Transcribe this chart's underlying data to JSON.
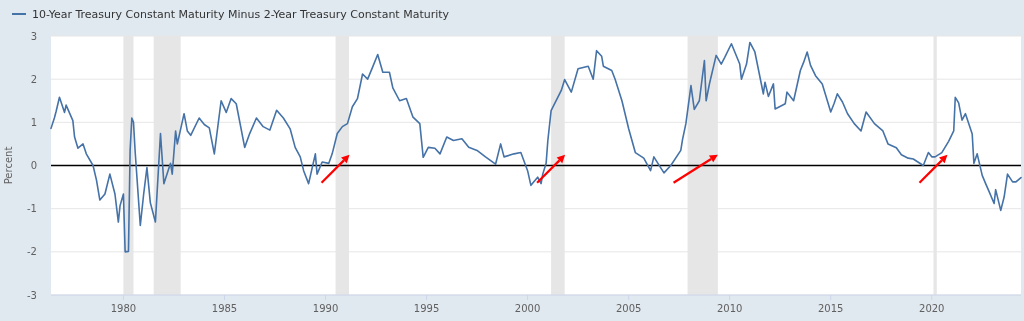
{
  "chart_data": {
    "type": "line",
    "ylabel": "Percent",
    "legend": "top left",
    "grid": "y",
    "line_style": "solid",
    "xlim": [
      "1976-06",
      "2024-06"
    ],
    "xticks": [
      "1980",
      "1985",
      "1990",
      "1995",
      "2000",
      "2005",
      "2010",
      "2015",
      "2020"
    ],
    "ylim": [
      -3,
      3
    ],
    "yticks": [
      -3,
      -2,
      -1,
      0,
      1,
      2,
      3
    ],
    "ref_lines": [
      {
        "axis": "y",
        "value": 0,
        "color": "#000000"
      }
    ],
    "bands": [
      {
        "axis": "x",
        "from": "1980-01",
        "to": "1980-07",
        "color": "#e6e6e6"
      },
      {
        "axis": "x",
        "from": "1981-07",
        "to": "1982-11",
        "color": "#e6e6e6"
      },
      {
        "axis": "x",
        "from": "1990-07",
        "to": "1991-03",
        "color": "#e6e6e6"
      },
      {
        "axis": "x",
        "from": "2001-03",
        "to": "2001-11",
        "color": "#e6e6e6"
      },
      {
        "axis": "x",
        "from": "2007-12",
        "to": "2009-06",
        "color": "#e6e6e6"
      },
      {
        "axis": "x",
        "from": "2020-02",
        "to": "2020-04",
        "color": "#e6e6e6"
      }
    ],
    "x": [
      "1976-06",
      "1976-08",
      "1976-09",
      "1976-11",
      "1977-02",
      "1977-03",
      "1977-07",
      "1977-08",
      "1977-10",
      "1978-01",
      "1978-03",
      "1978-07",
      "1978-09",
      "1978-11",
      "1979-02",
      "1979-05",
      "1979-08",
      "1979-10",
      "1979-11",
      "1980-01",
      "1980-02",
      "1980-04",
      "1980-05",
      "1980-06",
      "1980-07",
      "1980-08",
      "1980-11",
      "1981-01",
      "1981-03",
      "1981-05",
      "1981-08",
      "1981-11",
      "1982-01",
      "1982-05",
      "1982-06",
      "1982-08",
      "1982-09",
      "1982-11",
      "1983-01",
      "1983-03",
      "1983-05",
      "1983-10",
      "1984-01",
      "1984-04",
      "1984-07",
      "1984-11",
      "1985-02",
      "1985-05",
      "1985-08",
      "1986-01",
      "1986-04",
      "1986-08",
      "1986-12",
      "1987-04",
      "1987-08",
      "1987-12",
      "1988-04",
      "1988-07",
      "1988-10",
      "1988-12",
      "1989-03",
      "1989-07",
      "1989-08",
      "1989-11",
      "1990-03",
      "1990-05",
      "1990-08",
      "1990-11",
      "1991-02",
      "1991-05",
      "1991-08",
      "1991-11",
      "1992-02",
      "1992-05",
      "1992-08",
      "1992-11",
      "1993-03",
      "1993-05",
      "1993-09",
      "1994-01",
      "1994-05",
      "1994-09",
      "1994-11",
      "1995-02",
      "1995-06",
      "1995-09",
      "1996-01",
      "1996-05",
      "1996-10",
      "1997-02",
      "1997-07",
      "1997-12",
      "1998-06",
      "1998-09",
      "1998-11",
      "1999-05",
      "1999-09",
      "2000-01",
      "2000-03",
      "2000-07",
      "2000-09",
      "2000-10",
      "2000-12",
      "2001-01",
      "2001-03",
      "2001-09",
      "2001-11",
      "2002-03",
      "2002-07",
      "2003-01",
      "2003-04",
      "2003-06",
      "2003-09",
      "2003-10",
      "2004-03",
      "2004-05",
      "2004-09",
      "2005-01",
      "2005-05",
      "2005-10",
      "2006-02",
      "2006-04",
      "2006-08",
      "2006-10",
      "2007-02",
      "2007-08",
      "2007-09",
      "2007-11",
      "2008-02",
      "2008-04",
      "2008-07",
      "2008-10",
      "2008-11",
      "2009-01",
      "2009-05",
      "2009-08",
      "2009-10",
      "2010-02",
      "2010-07",
      "2010-08",
      "2010-11",
      "2011-01",
      "2011-04",
      "2011-09",
      "2011-10",
      "2011-12",
      "2012-03",
      "2012-04",
      "2012-10",
      "2012-11",
      "2013-03",
      "2013-07",
      "2013-09",
      "2013-11",
      "2014-01",
      "2014-04",
      "2014-08",
      "2014-11",
      "2015-01",
      "2015-03",
      "2015-05",
      "2015-08",
      "2015-11",
      "2016-03",
      "2016-07",
      "2016-10",
      "2017-03",
      "2017-08",
      "2017-11",
      "2018-04",
      "2018-07",
      "2018-11",
      "2019-02",
      "2019-08",
      "2019-11",
      "2020-01",
      "2020-03",
      "2020-07",
      "2020-11",
      "2021-02",
      "2021-03",
      "2021-05",
      "2021-07",
      "2021-09",
      "2022-01",
      "2022-02",
      "2022-04",
      "2022-07",
      "2022-09",
      "2022-11",
      "2023-02",
      "2023-03",
      "2023-06",
      "2023-08",
      "2023-10",
      "2024-01",
      "2024-03",
      "2024-06"
    ],
    "series": [
      {
        "name": "10-Year Treasury Constant Maturity Minus 2-Year Treasury Constant Maturity",
        "color": "#4572a7",
        "values": [
          0.86,
          1.1,
          1.25,
          1.58,
          1.23,
          1.4,
          1.04,
          0.66,
          0.4,
          0.5,
          0.27,
          0,
          -0.34,
          -0.8,
          -0.66,
          -0.2,
          -0.66,
          -1.31,
          -0.93,
          -0.66,
          -2.0,
          -1.99,
          0.35,
          1.1,
          1.0,
          0.3,
          -1.39,
          -0.66,
          -0.05,
          -0.86,
          -1.31,
          0.74,
          -0.42,
          0.05,
          -0.2,
          0.8,
          0.5,
          0.85,
          1.2,
          0.8,
          0.7,
          1.1,
          0.95,
          0.87,
          0.27,
          1.5,
          1.23,
          1.55,
          1.43,
          0.42,
          0.74,
          1.1,
          0.9,
          0.82,
          1.28,
          1.1,
          0.85,
          0.42,
          0.2,
          -0.12,
          -0.42,
          0.27,
          -0.2,
          0.08,
          0.05,
          0.27,
          0.74,
          0.9,
          0.97,
          1.36,
          1.55,
          2.12,
          2.0,
          2.28,
          2.57,
          2.16,
          2.16,
          1.8,
          1.5,
          1.55,
          1.12,
          0.97,
          0.19,
          0.42,
          0.4,
          0.27,
          0.66,
          0.58,
          0.62,
          0.42,
          0.35,
          0.2,
          0.03,
          0.5,
          0.2,
          0.27,
          0.3,
          -0.12,
          -0.46,
          -0.27,
          -0.42,
          -0.2,
          0.05,
          0.58,
          1.27,
          1.74,
          1.99,
          1.7,
          2.24,
          2.3,
          2.0,
          2.66,
          2.53,
          2.3,
          2.2,
          2.0,
          1.5,
          0.85,
          0.3,
          0.17,
          -0.12,
          0.2,
          -0.05,
          -0.17,
          0.0,
          0.35,
          0.6,
          0.97,
          1.85,
          1.3,
          1.5,
          2.43,
          1.5,
          1.9,
          2.55,
          2.35,
          2.5,
          2.82,
          2.35,
          2.0,
          2.35,
          2.85,
          2.63,
          1.66,
          1.93,
          1.6,
          1.89,
          1.31,
          1.43,
          1.7,
          1.5,
          2.2,
          2.4,
          2.63,
          2.32,
          2.08,
          1.89,
          1.5,
          1.24,
          1.43,
          1.66,
          1.47,
          1.2,
          0.97,
          0.8,
          1.24,
          0.97,
          0.8,
          0.5,
          0.41,
          0.25,
          0.17,
          0.15,
          0.0,
          0.3,
          0.2,
          0.2,
          0.3,
          0.56,
          0.8,
          1.58,
          1.45,
          1.05,
          1.2,
          0.73,
          0.05,
          0.27,
          -0.23,
          -0.42,
          -0.6,
          -0.88,
          -0.56,
          -1.04,
          -0.73,
          -0.2,
          -0.38,
          -0.38,
          -0.28
        ]
      }
    ]
  }
}
